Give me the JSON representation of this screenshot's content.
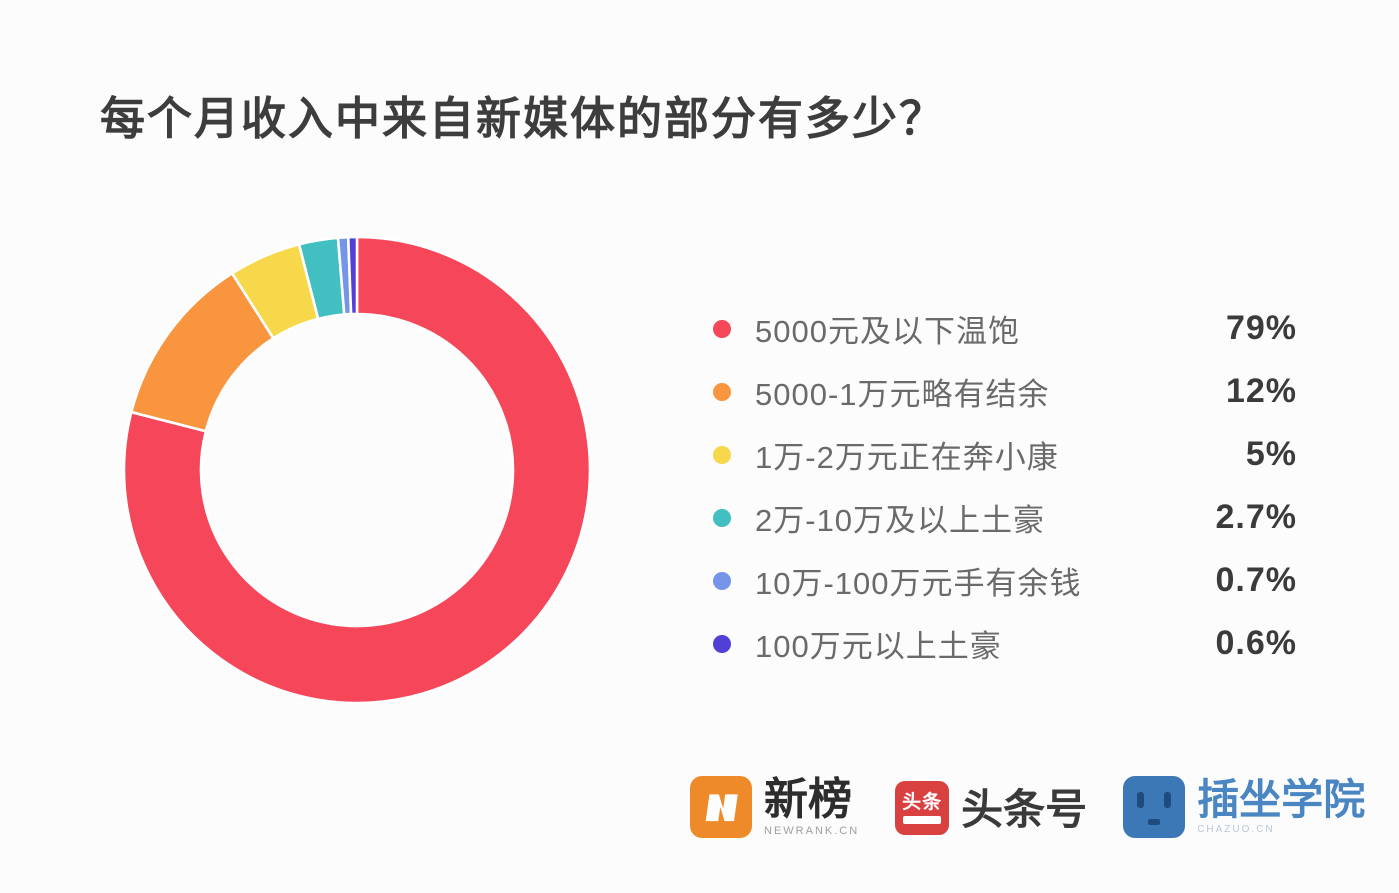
{
  "title": "每个月收入中来自新媒体的部分有多少？",
  "chart_data": {
    "type": "pie",
    "subtype": "donut",
    "title": "每个月收入中来自新媒体的部分有多少？",
    "start_angle_deg": -90,
    "direction": "clockwise",
    "categories": [
      "5000元及以下温饱",
      "5000-1万元略有结余",
      "1万-2万元正在奔小康",
      "2万-10万及以上土豪",
      "10万-100万元手有余钱",
      "100万元以上土豪"
    ],
    "values": [
      79,
      12,
      5,
      2.7,
      0.7,
      0.6
    ],
    "value_labels": [
      "79%",
      "12%",
      "5%",
      "2.7%",
      "0.7%",
      "0.6%"
    ],
    "colors": [
      "#f6475a",
      "#f9953f",
      "#f8d84b",
      "#41bfc1",
      "#7795e8",
      "#5140d6"
    ],
    "legend_position": "right",
    "hole_ratio": 0.67
  },
  "footer": {
    "brands": [
      {
        "name": "新榜",
        "sub": "NEWRANK.CN",
        "icon": "newrank-n-logo",
        "icon_color": "#ef8a2b"
      },
      {
        "name": "头条号",
        "icon_text": "头条",
        "icon": "toutiao-logo",
        "icon_color": "#d94040"
      },
      {
        "name": "插坐学院",
        "sub": "CHAZUO.CN",
        "icon": "chazuo-face-logo",
        "icon_color": "#3b78b5"
      }
    ]
  },
  "style_colors": {
    "background": "#fcfcfc",
    "title_text": "#3d3d3d",
    "legend_label_text": "#6a6a6a",
    "legend_value_text": "#3b3b3b",
    "slice_separator": "#ffffff"
  }
}
